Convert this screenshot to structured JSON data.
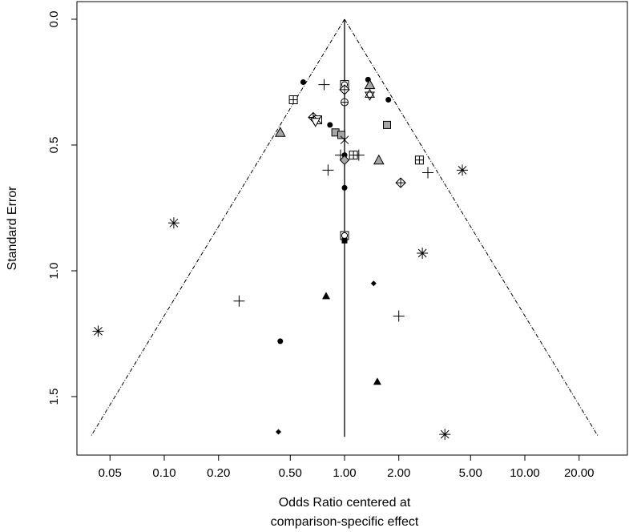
{
  "chart_data": {
    "type": "scatter",
    "subtype": "funnel-plot",
    "title": "",
    "xlabel_lines": [
      "Odds Ratio centered at",
      "comparison-specific effect"
    ],
    "ylabel": "Standard Error",
    "x_scale": "log",
    "y_reversed": true,
    "xlim": [
      0.03,
      31
    ],
    "ylim": [
      0,
      1.75
    ],
    "x_ticks": [
      {
        "value": 0.05,
        "label": "0.05"
      },
      {
        "value": 0.1,
        "label": "0.10"
      },
      {
        "value": 0.2,
        "label": "0.20"
      },
      {
        "value": 0.5,
        "label": "0.50"
      },
      {
        "value": 1,
        "label": "1.00"
      },
      {
        "value": 2,
        "label": "2.00"
      },
      {
        "value": 5,
        "label": "5.00"
      },
      {
        "value": 10,
        "label": "10.00"
      },
      {
        "value": 20,
        "label": "20.00"
      }
    ],
    "y_ticks": [
      {
        "value": 0.0,
        "label": "0.0"
      },
      {
        "value": 0.5,
        "label": "0.5"
      },
      {
        "value": 1.0,
        "label": "1.0"
      },
      {
        "value": 1.5,
        "label": "1.5"
      }
    ],
    "reference_line": {
      "x": 1,
      "y_from": 0,
      "y_to": 1.66
    },
    "funnel": {
      "apex": [
        1,
        0
      ],
      "left": [
        0.039,
        1.66
      ],
      "right": [
        25.6,
        1.66
      ]
    },
    "points": [
      {
        "x": 0.59,
        "y": 0.25,
        "marker": "dot"
      },
      {
        "x": 0.77,
        "y": 0.26,
        "marker": "plus"
      },
      {
        "x": 1.0,
        "y": 0.26,
        "marker": "square-circle"
      },
      {
        "x": 1.0,
        "y": 0.28,
        "marker": "diamond-plus"
      },
      {
        "x": 1.35,
        "y": 0.24,
        "marker": "dot"
      },
      {
        "x": 1.38,
        "y": 0.26,
        "marker": "triangle-grey"
      },
      {
        "x": 1.38,
        "y": 0.3,
        "marker": "star-of-david"
      },
      {
        "x": 1.75,
        "y": 0.32,
        "marker": "dot"
      },
      {
        "x": 0.52,
        "y": 0.32,
        "marker": "square-plus"
      },
      {
        "x": 1.0,
        "y": 0.33,
        "marker": "circle-plus"
      },
      {
        "x": 0.67,
        "y": 0.39,
        "marker": "diamond-plus"
      },
      {
        "x": 0.71,
        "y": 0.4,
        "marker": "square-x"
      },
      {
        "x": 0.69,
        "y": 0.41,
        "marker": "triangle-down"
      },
      {
        "x": 0.83,
        "y": 0.42,
        "marker": "dot"
      },
      {
        "x": 1.72,
        "y": 0.42,
        "marker": "square-grey"
      },
      {
        "x": 0.44,
        "y": 0.45,
        "marker": "triangle-grey"
      },
      {
        "x": 0.89,
        "y": 0.45,
        "marker": "square-grey"
      },
      {
        "x": 0.96,
        "y": 0.46,
        "marker": "square-grey"
      },
      {
        "x": 1.0,
        "y": 0.48,
        "marker": "cross"
      },
      {
        "x": 0.95,
        "y": 0.54,
        "marker": "plus"
      },
      {
        "x": 1.0,
        "y": 0.54,
        "marker": "dot"
      },
      {
        "x": 1.12,
        "y": 0.54,
        "marker": "square-plus"
      },
      {
        "x": 1.2,
        "y": 0.54,
        "marker": "plus"
      },
      {
        "x": 1.0,
        "y": 0.56,
        "marker": "diamond-grey"
      },
      {
        "x": 1.55,
        "y": 0.56,
        "marker": "triangle-grey"
      },
      {
        "x": 2.6,
        "y": 0.56,
        "marker": "square-plus"
      },
      {
        "x": 0.81,
        "y": 0.6,
        "marker": "plus"
      },
      {
        "x": 2.9,
        "y": 0.61,
        "marker": "plus"
      },
      {
        "x": 4.5,
        "y": 0.6,
        "marker": "asterisk"
      },
      {
        "x": 2.05,
        "y": 0.65,
        "marker": "diamond-plus"
      },
      {
        "x": 1.0,
        "y": 0.67,
        "marker": "dot"
      },
      {
        "x": 0.113,
        "y": 0.81,
        "marker": "asterisk"
      },
      {
        "x": 1.0,
        "y": 0.86,
        "marker": "square-circle"
      },
      {
        "x": 1.0,
        "y": 0.88,
        "marker": "square-black"
      },
      {
        "x": 2.7,
        "y": 0.93,
        "marker": "asterisk"
      },
      {
        "x": 1.45,
        "y": 1.05,
        "marker": "diamond-black"
      },
      {
        "x": 0.79,
        "y": 1.1,
        "marker": "triangle-black"
      },
      {
        "x": 0.26,
        "y": 1.12,
        "marker": "plus"
      },
      {
        "x": 2.0,
        "y": 1.18,
        "marker": "plus"
      },
      {
        "x": 0.043,
        "y": 1.24,
        "marker": "asterisk"
      },
      {
        "x": 0.44,
        "y": 1.28,
        "marker": "dot"
      },
      {
        "x": 1.52,
        "y": 1.44,
        "marker": "triangle-black"
      },
      {
        "x": 0.43,
        "y": 1.64,
        "marker": "diamond-black"
      },
      {
        "x": 3.6,
        "y": 1.65,
        "marker": "asterisk"
      }
    ]
  }
}
